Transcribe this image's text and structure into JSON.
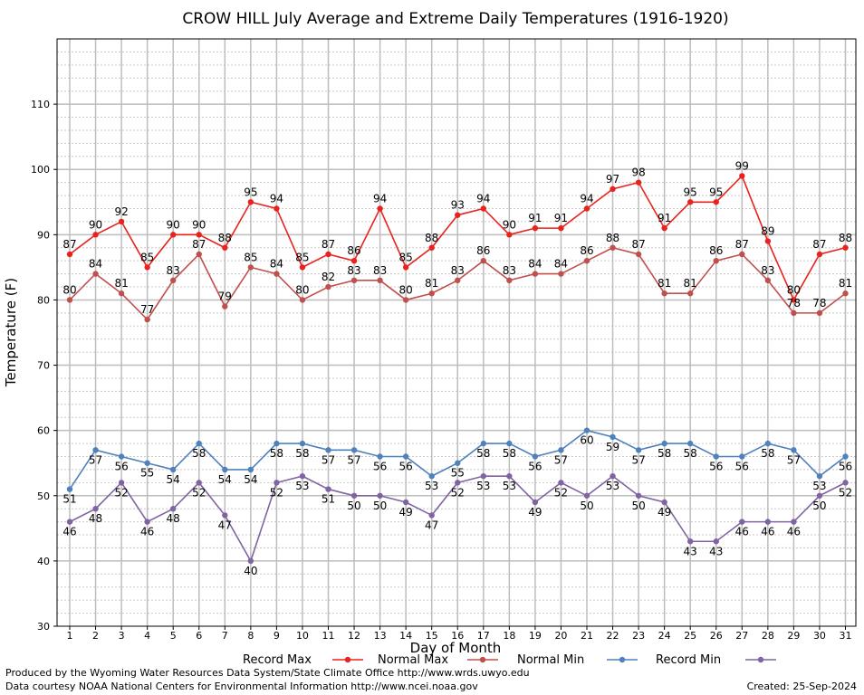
{
  "chart_data": {
    "type": "line",
    "title": "CROW HILL July Average and Extreme Daily Temperatures (1916-1920)",
    "xlabel": "Day of Month",
    "ylabel": "Temperature (F)",
    "ylim": [
      30,
      120
    ],
    "yticks": [
      30,
      40,
      50,
      60,
      70,
      80,
      90,
      100,
      110
    ],
    "x": [
      1,
      2,
      3,
      4,
      5,
      6,
      7,
      8,
      9,
      10,
      11,
      12,
      13,
      14,
      15,
      16,
      17,
      18,
      19,
      20,
      21,
      22,
      23,
      24,
      25,
      26,
      27,
      28,
      29,
      30,
      31
    ],
    "grid": true,
    "legend_position": "bottom",
    "series": [
      {
        "name": "Record Max",
        "color": "#e8231e",
        "values": [
          87,
          90,
          92,
          85,
          90,
          90,
          88,
          95,
          94,
          85,
          87,
          86,
          94,
          85,
          88,
          93,
          94,
          90,
          91,
          91,
          94,
          97,
          98,
          91,
          95,
          95,
          99,
          89,
          80,
          87,
          88
        ]
      },
      {
        "name": "Normal Max",
        "color": "#c0504d",
        "values": [
          80,
          84,
          81,
          77,
          83,
          87,
          79,
          85,
          84,
          80,
          82,
          83,
          83,
          80,
          81,
          83,
          86,
          83,
          84,
          84,
          86,
          88,
          87,
          81,
          81,
          86,
          87,
          83,
          78,
          78,
          81
        ]
      },
      {
        "name": "Normal Min",
        "color": "#4f81bd",
        "values": [
          51,
          57,
          56,
          55,
          54,
          58,
          54,
          54,
          58,
          58,
          57,
          57,
          56,
          56,
          53,
          55,
          58,
          58,
          56,
          57,
          60,
          59,
          57,
          58,
          58,
          56,
          56,
          58,
          57,
          53,
          56
        ]
      },
      {
        "name": "Record Min",
        "color": "#8064a2",
        "values": [
          46,
          48,
          52,
          46,
          48,
          52,
          47,
          40,
          52,
          53,
          51,
          50,
          50,
          49,
          47,
          52,
          53,
          53,
          49,
          52,
          50,
          53,
          50,
          49,
          43,
          43,
          46,
          46,
          46,
          50,
          52
        ]
      }
    ]
  },
  "footer": {
    "produced_by": "Produced by the Wyoming Water Resources Data System/State Climate Office http://www.wrds.uwyo.edu",
    "data_courtesy": "Data courtesy NOAA National Centers for Environmental Information http://www.ncei.noaa.gov",
    "created": "Created:  25-Sep-2024"
  }
}
